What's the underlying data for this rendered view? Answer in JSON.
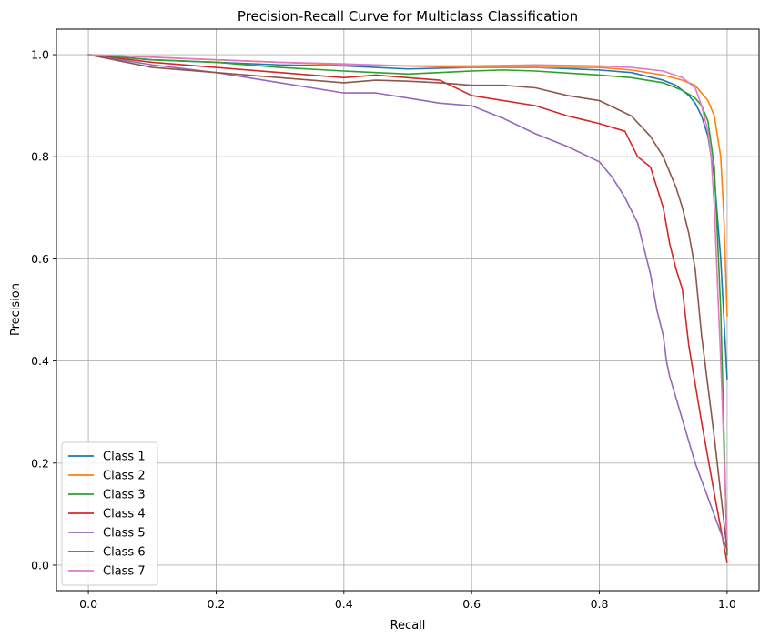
{
  "chart_data": {
    "type": "line",
    "title": "Precision-Recall Curve for Multiclass Classification",
    "xlabel": "Recall",
    "ylabel": "Precision",
    "xlim": [
      -0.05,
      1.05
    ],
    "ylim": [
      -0.05,
      1.05
    ],
    "xticks": [
      0.0,
      0.2,
      0.4,
      0.6,
      0.8,
      1.0
    ],
    "yticks": [
      0.0,
      0.2,
      0.4,
      0.6,
      0.8,
      1.0
    ],
    "xtick_labels": [
      "0.0",
      "0.2",
      "0.4",
      "0.6",
      "0.8",
      "1.0"
    ],
    "ytick_labels": [
      "0.0",
      "0.2",
      "0.4",
      "0.6",
      "0.8",
      "1.0"
    ],
    "grid": true,
    "legend_position": "lower-left",
    "series": [
      {
        "name": "Class 1",
        "color": "#1f77b4",
        "x": [
          0.0,
          0.1,
          0.2,
          0.3,
          0.4,
          0.5,
          0.6,
          0.7,
          0.8,
          0.85,
          0.9,
          0.92,
          0.94,
          0.95,
          0.96,
          0.97,
          0.98,
          0.99,
          1.0
        ],
        "y": [
          1.0,
          0.99,
          0.985,
          0.98,
          0.978,
          0.972,
          0.975,
          0.975,
          0.97,
          0.965,
          0.95,
          0.94,
          0.92,
          0.905,
          0.88,
          0.84,
          0.76,
          0.6,
          0.365
        ]
      },
      {
        "name": "Class 2",
        "color": "#ff7f0e",
        "x": [
          0.0,
          0.1,
          0.2,
          0.3,
          0.4,
          0.5,
          0.6,
          0.7,
          0.8,
          0.85,
          0.9,
          0.93,
          0.95,
          0.97,
          0.98,
          0.99,
          0.995,
          1.0
        ],
        "y": [
          1.0,
          0.995,
          0.99,
          0.985,
          0.98,
          0.978,
          0.975,
          0.975,
          0.975,
          0.97,
          0.96,
          0.95,
          0.94,
          0.91,
          0.88,
          0.8,
          0.68,
          0.488
        ]
      },
      {
        "name": "Class 3",
        "color": "#2ca02c",
        "x": [
          0.0,
          0.1,
          0.2,
          0.3,
          0.4,
          0.5,
          0.6,
          0.65,
          0.7,
          0.8,
          0.85,
          0.9,
          0.93,
          0.95,
          0.96,
          0.97,
          0.98,
          0.99,
          1.0
        ],
        "y": [
          1.0,
          0.99,
          0.985,
          0.975,
          0.968,
          0.962,
          0.968,
          0.97,
          0.968,
          0.96,
          0.955,
          0.945,
          0.93,
          0.915,
          0.9,
          0.87,
          0.78,
          0.5,
          0.02
        ]
      },
      {
        "name": "Class 4",
        "color": "#d62728",
        "x": [
          0.0,
          0.1,
          0.2,
          0.3,
          0.4,
          0.45,
          0.5,
          0.55,
          0.6,
          0.65,
          0.7,
          0.75,
          0.8,
          0.84,
          0.86,
          0.88,
          0.9,
          0.91,
          0.92,
          0.93,
          0.94,
          0.96,
          0.98,
          1.0
        ],
        "y": [
          1.0,
          0.985,
          0.975,
          0.965,
          0.955,
          0.96,
          0.955,
          0.95,
          0.92,
          0.91,
          0.9,
          0.88,
          0.865,
          0.85,
          0.8,
          0.78,
          0.7,
          0.63,
          0.58,
          0.54,
          0.43,
          0.28,
          0.14,
          0.005
        ]
      },
      {
        "name": "Class 5",
        "color": "#9467bd",
        "x": [
          0.0,
          0.1,
          0.2,
          0.3,
          0.4,
          0.45,
          0.5,
          0.55,
          0.6,
          0.65,
          0.7,
          0.75,
          0.8,
          0.82,
          0.84,
          0.86,
          0.87,
          0.88,
          0.89,
          0.9,
          0.905,
          0.91,
          0.95,
          1.0
        ],
        "y": [
          1.0,
          0.98,
          0.965,
          0.945,
          0.925,
          0.925,
          0.915,
          0.905,
          0.9,
          0.875,
          0.845,
          0.82,
          0.79,
          0.76,
          0.72,
          0.67,
          0.62,
          0.57,
          0.5,
          0.45,
          0.4,
          0.37,
          0.2,
          0.03
        ]
      },
      {
        "name": "Class 6",
        "color": "#8c564b",
        "x": [
          0.0,
          0.1,
          0.2,
          0.3,
          0.4,
          0.45,
          0.5,
          0.55,
          0.6,
          0.65,
          0.7,
          0.75,
          0.8,
          0.85,
          0.88,
          0.9,
          0.92,
          0.93,
          0.94,
          0.95,
          0.96,
          0.98,
          1.0
        ],
        "y": [
          1.0,
          0.975,
          0.965,
          0.955,
          0.945,
          0.95,
          0.948,
          0.945,
          0.94,
          0.94,
          0.935,
          0.92,
          0.91,
          0.88,
          0.84,
          0.8,
          0.74,
          0.7,
          0.65,
          0.58,
          0.45,
          0.25,
          0.03
        ]
      },
      {
        "name": "Class 7",
        "color": "#e377c2",
        "x": [
          0.0,
          0.1,
          0.2,
          0.3,
          0.4,
          0.5,
          0.6,
          0.7,
          0.8,
          0.85,
          0.9,
          0.93,
          0.95,
          0.96,
          0.97,
          0.975,
          0.98,
          0.99,
          1.0
        ],
        "y": [
          1.0,
          0.995,
          0.99,
          0.985,
          0.982,
          0.978,
          0.978,
          0.98,
          0.978,
          0.975,
          0.968,
          0.955,
          0.935,
          0.9,
          0.85,
          0.8,
          0.7,
          0.4,
          0.05
        ]
      }
    ]
  }
}
